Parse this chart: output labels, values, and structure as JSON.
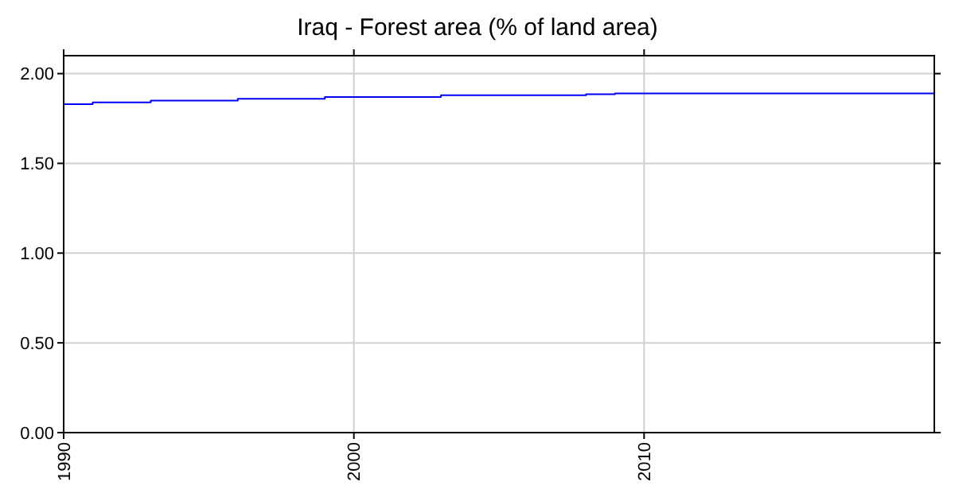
{
  "chart_data": {
    "type": "step",
    "title": "Iraq - Forest area (% of land area)",
    "x": [
      1990,
      1991,
      1993,
      1996,
      1999,
      2003,
      2008,
      2009,
      2020
    ],
    "series": [
      {
        "color": "#0000ff",
        "values": [
          1.83,
          1.84,
          1.85,
          1.86,
          1.87,
          1.88,
          1.885,
          1.89,
          1.89
        ]
      }
    ],
    "xlim": [
      1990,
      2020
    ],
    "xticks": [
      1990,
      2000,
      2010
    ],
    "ylim": [
      0,
      2.1
    ],
    "yticks": [
      {
        "value": 0,
        "label": "0.00"
      },
      {
        "value": 0.5,
        "label": "0.50"
      },
      {
        "value": 1,
        "label": "1.00"
      },
      {
        "value": 1.5,
        "label": "1.50"
      },
      {
        "value": 2,
        "label": "2.00"
      }
    ],
    "grid": true
  }
}
